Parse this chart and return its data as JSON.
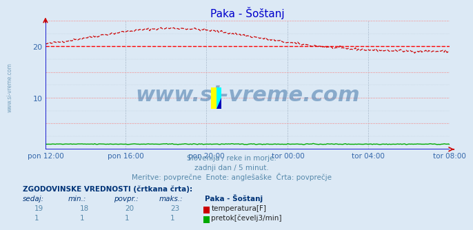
{
  "title": "Paka - Šoštanj",
  "bg_color": "#dce9f5",
  "plot_bg_color": "#dce9f5",
  "grid_color_h": "#ff9999",
  "grid_color_v": "#aabbcc",
  "temp_color": "#cc0000",
  "flow_color": "#00aa00",
  "avg_line_color": "#ff0000",
  "avg_line_value": 20.0,
  "axis_color": "#0000cc",
  "watermark_text": "www.si-vreme.com",
  "watermark_color": "#4477aa",
  "xlabel_ticks": [
    "pon 12:00",
    "pon 16:00",
    "pon 20:00",
    "tor 00:00",
    "tor 04:00",
    "tor 08:00"
  ],
  "ylabel_ticks": [
    10,
    20
  ],
  "ylim": [
    0,
    25
  ],
  "xlim": [
    0,
    287
  ],
  "sub_text1": "Slovenija / reke in morje.",
  "sub_text2": "zadnji dan / 5 minut.",
  "sub_text3": "Meritve: povprečne  Enote: anglešaške  Črta: povprečje",
  "table_header": "ZGODOVINSKE VREDNOSTI (črtkana črta):",
  "col_headers": [
    "sedaj:",
    "min.:",
    "povpr.:",
    "maks.:",
    "Paka - Šoštanj"
  ],
  "row_temp": [
    "19",
    "18",
    "20",
    "23",
    "temperatura[F]"
  ],
  "row_flow": [
    "1",
    "1",
    "1",
    "1",
    "pretok[čevelj3/min]"
  ],
  "left_label": "www.si-vreme.com",
  "title_color": "#0000cc",
  "text_color": "#5588aa",
  "label_color": "#3366aa"
}
